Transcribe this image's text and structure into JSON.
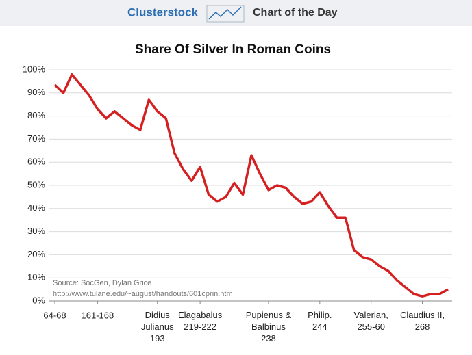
{
  "header": {
    "brand": "Clusterstock",
    "section": "Chart of the Day"
  },
  "chart_data": {
    "type": "line",
    "title": "Share Of Silver In Roman Coins",
    "categories": [
      "64-68",
      null,
      null,
      null,
      null,
      "161-168",
      null,
      null,
      null,
      null,
      null,
      null,
      "Didius\nJulianus\n193",
      null,
      null,
      null,
      null,
      "Elagabalus\n219-222",
      null,
      null,
      null,
      null,
      null,
      null,
      null,
      "Pupienus &\nBalbinus\n238",
      null,
      null,
      null,
      null,
      null,
      "Philip.\n244",
      null,
      null,
      null,
      null,
      null,
      "Valerian,\n255-60",
      null,
      null,
      null,
      null,
      null,
      "Claudius II,\n268",
      null,
      null,
      null
    ],
    "series": [
      {
        "name": "Share of silver",
        "color": "#d42020",
        "values": [
          93.5,
          90,
          98,
          93.5,
          89,
          83,
          79,
          82,
          79,
          76,
          74,
          87,
          82,
          79,
          64,
          57,
          52,
          58,
          46,
          43,
          45,
          51,
          46,
          63,
          55,
          48,
          50,
          49,
          45,
          42,
          43,
          47,
          41,
          36,
          36,
          22,
          19,
          18,
          15,
          13,
          9,
          6,
          3,
          2,
          3,
          3,
          5
        ]
      }
    ],
    "ylim": [
      0,
      100
    ],
    "yticks": [
      {
        "value": 0,
        "label": "0%"
      },
      {
        "value": 10,
        "label": "10%"
      },
      {
        "value": 20,
        "label": "20%"
      },
      {
        "value": 30,
        "label": "30%"
      },
      {
        "value": 40,
        "label": "40%"
      },
      {
        "value": 50,
        "label": "50%"
      },
      {
        "value": 60,
        "label": "60%"
      },
      {
        "value": 70,
        "label": "70%"
      },
      {
        "value": 80,
        "label": "80%"
      },
      {
        "value": 90,
        "label": "90%"
      },
      {
        "value": 100,
        "label": "100%"
      }
    ],
    "grid": true,
    "annotations": [
      "Source: SocGen, Dylan Grice",
      "http://www.tulane.edu/~august/handouts/601cprin.htm"
    ]
  }
}
